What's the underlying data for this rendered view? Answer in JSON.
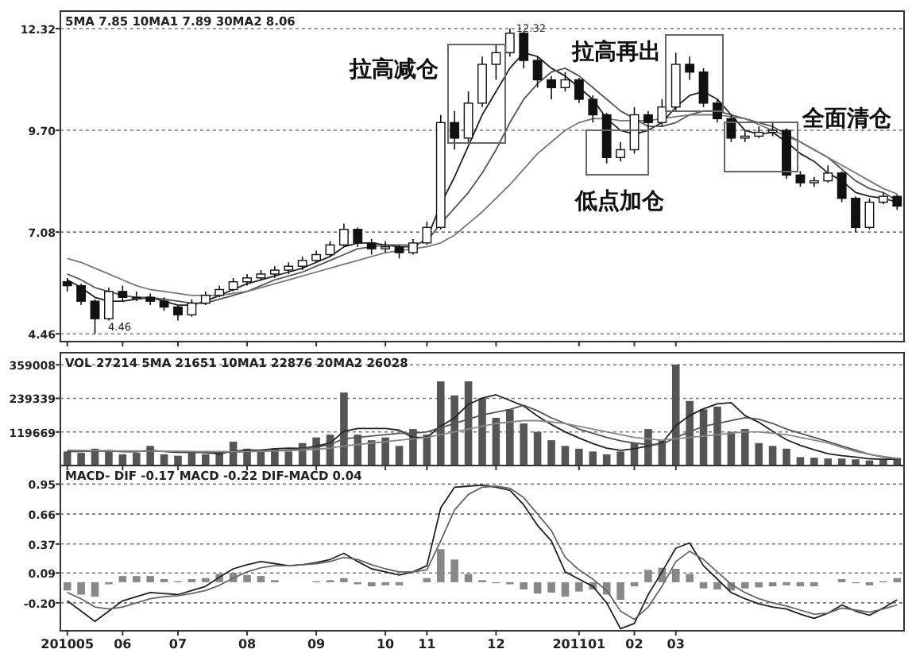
{
  "chart_data": [
    {
      "type": "candlestick",
      "title": "5MA 7.85  10MA1 7.89  30MA2 8.06",
      "tick_labels": "y",
      "grid": "y",
      "categories": [
        "201005",
        null,
        null,
        null,
        "06",
        null,
        null,
        null,
        "07",
        null,
        null,
        null,
        null,
        "08",
        null,
        null,
        null,
        null,
        "09",
        null,
        null,
        null,
        null,
        "10",
        null,
        null,
        "11",
        null,
        null,
        null,
        null,
        "12",
        null,
        null,
        null,
        null,
        null,
        "201101",
        null,
        null,
        null,
        "02",
        null,
        null,
        "03",
        null,
        null,
        null,
        null,
        null,
        null,
        null,
        null,
        null,
        null,
        null,
        null,
        null,
        null,
        null,
        null
      ],
      "ohlc": [
        [
          5.8,
          5.9,
          5.55,
          5.7
        ],
        [
          5.7,
          5.75,
          5.2,
          5.3
        ],
        [
          5.3,
          5.35,
          4.46,
          4.85
        ],
        [
          4.85,
          5.65,
          4.8,
          5.55
        ],
        [
          5.55,
          5.7,
          5.3,
          5.4
        ],
        [
          5.4,
          5.55,
          5.3,
          5.4
        ],
        [
          5.4,
          5.5,
          5.2,
          5.3
        ],
        [
          5.3,
          5.4,
          5.05,
          5.15
        ],
        [
          5.15,
          5.2,
          4.8,
          4.95
        ],
        [
          4.95,
          5.35,
          4.9,
          5.25
        ],
        [
          5.25,
          5.55,
          5.2,
          5.45
        ],
        [
          5.45,
          5.7,
          5.4,
          5.6
        ],
        [
          5.6,
          5.9,
          5.55,
          5.8
        ],
        [
          5.8,
          6.0,
          5.7,
          5.9
        ],
        [
          5.9,
          6.1,
          5.85,
          6.0
        ],
        [
          6.0,
          6.2,
          5.9,
          6.1
        ],
        [
          6.1,
          6.3,
          6.0,
          6.2
        ],
        [
          6.2,
          6.45,
          6.1,
          6.35
        ],
        [
          6.35,
          6.6,
          6.3,
          6.5
        ],
        [
          6.5,
          6.85,
          6.45,
          6.75
        ],
        [
          6.75,
          7.3,
          6.7,
          7.15
        ],
        [
          7.15,
          7.2,
          6.7,
          6.8
        ],
        [
          6.8,
          6.9,
          6.5,
          6.65
        ],
        [
          6.65,
          6.85,
          6.55,
          6.7
        ],
        [
          6.7,
          6.75,
          6.4,
          6.55
        ],
        [
          6.55,
          6.9,
          6.5,
          6.8
        ],
        [
          6.8,
          7.35,
          6.75,
          7.2
        ],
        [
          7.2,
          10.1,
          7.15,
          9.9
        ],
        [
          9.9,
          10.2,
          9.2,
          9.5
        ],
        [
          9.5,
          10.7,
          9.4,
          10.4
        ],
        [
          10.4,
          11.6,
          10.3,
          11.4
        ],
        [
          11.4,
          11.9,
          11.0,
          11.7
        ],
        [
          11.7,
          12.32,
          11.6,
          12.2
        ],
        [
          12.2,
          12.25,
          11.3,
          11.5
        ],
        [
          11.5,
          11.6,
          10.8,
          11.0
        ],
        [
          11.0,
          11.1,
          10.5,
          10.8
        ],
        [
          10.8,
          11.2,
          10.7,
          11.0
        ],
        [
          11.0,
          11.05,
          10.4,
          10.5
        ],
        [
          10.5,
          10.6,
          9.9,
          10.1
        ],
        [
          10.1,
          10.15,
          8.85,
          9.0
        ],
        [
          9.0,
          9.4,
          8.9,
          9.2
        ],
        [
          9.2,
          10.3,
          9.1,
          10.1
        ],
        [
          10.1,
          10.2,
          9.7,
          9.9
        ],
        [
          9.9,
          10.5,
          9.8,
          10.3
        ],
        [
          10.3,
          11.7,
          10.2,
          11.4
        ],
        [
          11.4,
          11.6,
          11.0,
          11.2
        ],
        [
          11.2,
          11.3,
          10.3,
          10.4
        ],
        [
          10.4,
          10.5,
          9.9,
          10.0
        ],
        [
          10.0,
          10.1,
          9.4,
          9.5
        ],
        [
          9.5,
          9.7,
          9.4,
          9.55
        ],
        [
          9.55,
          9.8,
          9.5,
          9.65
        ],
        [
          9.65,
          9.9,
          9.55,
          9.7
        ],
        [
          9.7,
          9.75,
          8.45,
          8.55
        ],
        [
          8.55,
          8.65,
          8.25,
          8.35
        ],
        [
          8.35,
          8.5,
          8.25,
          8.4
        ],
        [
          8.4,
          8.8,
          8.35,
          8.6
        ],
        [
          8.6,
          8.65,
          7.85,
          7.95
        ],
        [
          7.95,
          8.0,
          7.08,
          7.2
        ],
        [
          7.2,
          7.95,
          7.15,
          7.85
        ],
        [
          7.85,
          8.1,
          7.8,
          8.0
        ],
        [
          8.0,
          8.05,
          7.65,
          7.75
        ]
      ],
      "series": [
        {
          "type": "line",
          "color": "#222222",
          "values": [
            5.85,
            5.65,
            5.4,
            5.3,
            5.3,
            5.35,
            5.4,
            5.3,
            5.2,
            5.2,
            5.3,
            5.45,
            5.6,
            5.75,
            5.85,
            5.95,
            6.05,
            6.15,
            6.3,
            6.45,
            6.7,
            6.8,
            6.8,
            6.75,
            6.7,
            6.7,
            6.9,
            7.8,
            8.5,
            9.3,
            10.1,
            10.7,
            11.3,
            11.7,
            11.6,
            11.3,
            11.1,
            10.8,
            10.5,
            10.0,
            9.7,
            9.6,
            9.7,
            9.9,
            10.3,
            10.6,
            10.7,
            10.5,
            10.1,
            9.7,
            9.6,
            9.65,
            9.4,
            9.1,
            8.9,
            8.6,
            8.4,
            8.1,
            8.0,
            7.95,
            7.85
          ]
        },
        {
          "type": "line",
          "color": "#555555",
          "values": [
            6.0,
            5.85,
            5.65,
            5.55,
            5.45,
            5.4,
            5.4,
            5.35,
            5.3,
            5.25,
            5.25,
            5.35,
            5.45,
            5.55,
            5.7,
            5.85,
            5.95,
            6.05,
            6.2,
            6.35,
            6.5,
            6.65,
            6.7,
            6.75,
            6.75,
            6.75,
            6.85,
            7.3,
            7.7,
            8.1,
            8.6,
            9.2,
            9.9,
            10.5,
            10.9,
            11.2,
            11.3,
            11.1,
            10.8,
            10.5,
            10.2,
            10.0,
            9.8,
            9.8,
            9.9,
            10.1,
            10.2,
            10.2,
            10.1,
            10.0,
            9.9,
            9.8,
            9.6,
            9.4,
            9.2,
            9.0,
            8.7,
            8.4,
            8.2,
            8.1,
            7.89
          ]
        },
        {
          "type": "line",
          "color": "#777777",
          "values": [
            6.4,
            6.3,
            6.15,
            6.0,
            5.85,
            5.7,
            5.6,
            5.55,
            5.5,
            5.45,
            5.45,
            5.45,
            5.5,
            5.55,
            5.65,
            5.75,
            5.85,
            5.95,
            6.05,
            6.15,
            6.25,
            6.35,
            6.45,
            6.55,
            6.6,
            6.65,
            6.7,
            6.8,
            7.0,
            7.3,
            7.6,
            7.95,
            8.3,
            8.7,
            9.1,
            9.4,
            9.7,
            9.9,
            10.0,
            10.0,
            9.95,
            9.95,
            9.95,
            10.0,
            10.05,
            10.1,
            10.1,
            10.1,
            10.05,
            10.0,
            9.85,
            9.7,
            9.55,
            9.4,
            9.2,
            9.0,
            8.8,
            8.6,
            8.4,
            8.2,
            8.06
          ]
        }
      ],
      "ylim": [
        4.26,
        12.77
      ],
      "yticks": [
        {
          "value": 4.46,
          "label": "4.46"
        },
        {
          "value": 7.08,
          "label": "7.08"
        },
        {
          "value": 9.7,
          "label": "9.70"
        },
        {
          "value": 12.32,
          "label": "12.32"
        }
      ],
      "annotations": [
        {
          "text": "12.32",
          "y": 12.32
        },
        "拉高减仓",
        "拉高再出",
        "低点加仓",
        "全面清仓",
        "4.46"
      ]
    },
    {
      "type": "bar",
      "title": "VOL 27214  5MA 21651  10MA1 22876  20MA2 26028",
      "tick_labels": "y",
      "grid": "y",
      "categories": [
        "201005",
        null,
        null,
        null,
        "06",
        null,
        null,
        null,
        "07",
        null,
        null,
        null,
        null,
        "08",
        null,
        null,
        null,
        null,
        "09",
        null,
        null,
        null,
        null,
        "10",
        null,
        null,
        "11",
        null,
        null,
        null,
        null,
        "12",
        null,
        null,
        null,
        null,
        null,
        "201101",
        null,
        null,
        null,
        "02",
        null,
        null,
        "03",
        null,
        null,
        null,
        null,
        null,
        null,
        null,
        null,
        null,
        null,
        null,
        null,
        null,
        null,
        null,
        null
      ],
      "series": [
        {
          "type": "bar",
          "color": "#555555",
          "values": [
            50000,
            45000,
            60000,
            55000,
            40000,
            45000,
            70000,
            40000,
            35000,
            45000,
            40000,
            50000,
            85000,
            60000,
            55000,
            60000,
            50000,
            80000,
            100000,
            110000,
            260000,
            110000,
            90000,
            100000,
            70000,
            130000,
            110000,
            300000,
            250000,
            300000,
            240000,
            170000,
            200000,
            150000,
            120000,
            90000,
            70000,
            60000,
            50000,
            40000,
            50000,
            80000,
            130000,
            90000,
            360000,
            230000,
            200000,
            210000,
            120000,
            130000,
            80000,
            70000,
            60000,
            30000,
            28000,
            25000,
            25000,
            22000,
            18000,
            20000,
            27000
          ]
        },
        {
          "type": "line",
          "color": "#222222",
          "values": [
            50000,
            50000,
            52000,
            52000,
            50000,
            49000,
            54000,
            50000,
            47000,
            47000,
            46000,
            42000,
            51000,
            55000,
            55000,
            60000,
            62000,
            61000,
            69000,
            80000,
            122000,
            132000,
            132000,
            132000,
            126000,
            100000,
            100000,
            140000,
            170000,
            218000,
            240000,
            252000,
            232000,
            212000,
            176000,
            146000,
            120000,
            98000,
            78000,
            62000,
            54000,
            60000,
            70000,
            80000,
            142000,
            178000,
            202000,
            220000,
            224000,
            178000,
            154000,
            122000,
            92000,
            72000,
            56000,
            42000,
            35000,
            30000,
            24000,
            22000,
            22000
          ]
        },
        {
          "type": "line",
          "color": "#555555",
          "values": [
            52000,
            51000,
            51000,
            51000,
            50000,
            50000,
            52000,
            51000,
            50000,
            49000,
            48000,
            47000,
            48000,
            50000,
            51000,
            53000,
            56000,
            60000,
            65000,
            75000,
            95000,
            100000,
            105000,
            110000,
            115000,
            115000,
            120000,
            135000,
            150000,
            165000,
            180000,
            190000,
            200000,
            215000,
            195000,
            170000,
            150000,
            130000,
            115000,
            100000,
            88000,
            80000,
            75000,
            75000,
            100000,
            120000,
            140000,
            150000,
            160000,
            170000,
            165000,
            150000,
            130000,
            115000,
            100000,
            85000,
            70000,
            55000,
            40000,
            30000,
            23000
          ]
        },
        {
          "type": "line",
          "color": "#888888",
          "values": [
            55000,
            54000,
            53000,
            53000,
            52000,
            52000,
            52000,
            51000,
            51000,
            50000,
            50000,
            50000,
            50000,
            50000,
            51000,
            52000,
            53000,
            55000,
            58000,
            62000,
            70000,
            75000,
            80000,
            85000,
            90000,
            95000,
            100000,
            110000,
            120000,
            130000,
            140000,
            150000,
            155000,
            160000,
            160000,
            155000,
            150000,
            140000,
            130000,
            120000,
            110000,
            100000,
            95000,
            90000,
            95000,
            100000,
            105000,
            110000,
            115000,
            120000,
            120000,
            115000,
            110000,
            100000,
            90000,
            80000,
            65000,
            50000,
            40000,
            32000,
            26000
          ]
        }
      ],
      "ylim": [
        0,
        402000
      ],
      "yticks": [
        119669,
        239339,
        359008
      ]
    },
    {
      "type": "line",
      "title": "MACD- DIF -0.17  MACD -0.22  DIF-MACD 0.04",
      "grid": "y",
      "categories": [
        "201005",
        null,
        null,
        null,
        "06",
        null,
        null,
        null,
        "07",
        null,
        null,
        null,
        null,
        "08",
        null,
        null,
        null,
        null,
        "09",
        null,
        null,
        null,
        null,
        "10",
        null,
        null,
        "11",
        null,
        null,
        null,
        null,
        "12",
        null,
        null,
        null,
        null,
        null,
        "201101",
        null,
        null,
        null,
        "02",
        null,
        null,
        "03",
        null,
        null,
        null,
        null,
        null,
        null,
        null,
        null,
        null,
        null,
        null,
        null,
        null,
        null,
        null,
        null
      ],
      "series": [
        {
          "type": "bar",
          "color": "#888888",
          "values": [
            -0.08,
            -0.12,
            -0.14,
            -0.02,
            0.06,
            0.06,
            0.06,
            0.03,
            0.01,
            0.03,
            0.04,
            0.08,
            0.09,
            0.07,
            0.06,
            0.02,
            0.0,
            0.0,
            0.01,
            0.02,
            0.04,
            -0.02,
            -0.04,
            -0.03,
            -0.03,
            0.0,
            0.04,
            0.32,
            0.22,
            0.08,
            0.02,
            -0.01,
            -0.02,
            -0.07,
            -0.11,
            -0.1,
            -0.14,
            -0.09,
            -0.07,
            -0.12,
            -0.17,
            -0.04,
            0.12,
            0.14,
            0.13,
            0.08,
            -0.06,
            -0.07,
            -0.08,
            -0.06,
            -0.05,
            -0.04,
            -0.03,
            -0.04,
            -0.04,
            0.0,
            0.03,
            -0.01,
            -0.03,
            0.01,
            0.04
          ]
        },
        {
          "type": "line",
          "color": "#222222",
          "values": [
            -0.18,
            -0.28,
            -0.38,
            -0.28,
            -0.18,
            -0.14,
            -0.1,
            -0.11,
            -0.12,
            -0.08,
            -0.04,
            0.05,
            0.13,
            0.17,
            0.2,
            0.18,
            0.16,
            0.17,
            0.19,
            0.22,
            0.28,
            0.2,
            0.13,
            0.1,
            0.07,
            0.1,
            0.16,
            0.72,
            0.92,
            0.93,
            0.94,
            0.92,
            0.89,
            0.75,
            0.55,
            0.4,
            0.1,
            0.03,
            -0.04,
            -0.2,
            -0.45,
            -0.4,
            -0.12,
            0.1,
            0.33,
            0.38,
            0.16,
            0.03,
            -0.1,
            -0.16,
            -0.21,
            -0.24,
            -0.26,
            -0.31,
            -0.35,
            -0.3,
            -0.22,
            -0.28,
            -0.32,
            -0.25,
            -0.17
          ]
        },
        {
          "type": "line",
          "color": "#666666",
          "values": [
            -0.1,
            -0.16,
            -0.24,
            -0.26,
            -0.24,
            -0.2,
            -0.16,
            -0.14,
            -0.13,
            -0.11,
            -0.08,
            -0.03,
            0.04,
            0.1,
            0.14,
            0.16,
            0.16,
            0.17,
            0.18,
            0.2,
            0.24,
            0.22,
            0.17,
            0.13,
            0.1,
            0.1,
            0.12,
            0.4,
            0.7,
            0.85,
            0.92,
            0.93,
            0.91,
            0.82,
            0.66,
            0.5,
            0.24,
            0.12,
            0.03,
            -0.08,
            -0.28,
            -0.36,
            -0.24,
            -0.04,
            0.2,
            0.3,
            0.22,
            0.1,
            -0.02,
            -0.1,
            -0.16,
            -0.2,
            -0.23,
            -0.27,
            -0.31,
            -0.3,
            -0.25,
            -0.27,
            -0.29,
            -0.26,
            -0.22
          ]
        }
      ],
      "ylim": [
        -0.47,
        1.13
      ],
      "yticks": [
        {
          "value": -0.2,
          "label": "-0.20"
        },
        {
          "value": 0.09,
          "label": "0.09"
        },
        {
          "value": 0.37,
          "label": "0.37"
        },
        {
          "value": 0.66,
          "label": "0.66"
        },
        {
          "value": 0.95,
          "label": "0.95"
        }
      ]
    }
  ]
}
